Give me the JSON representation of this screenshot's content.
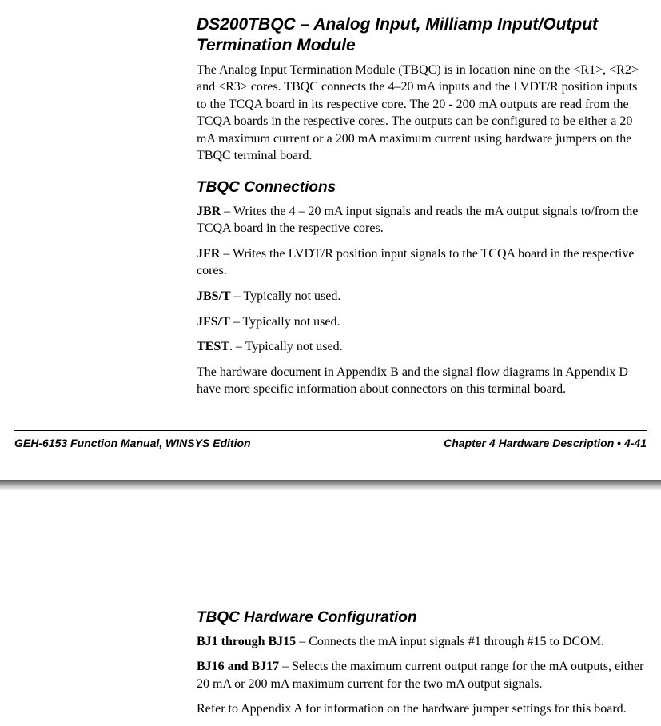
{
  "page1": {
    "title": "DS200TBQC – Analog Input, Milliamp Input/Output Termination Module",
    "intro": "The Analog Input Termination Module (TBQC) is in location nine on the <R1>, <R2> and <R3> cores. TBQC connects the 4–20 mA inputs and the LVDT/R position inputs to the TCQA board in its respective core. The 20 - 200 mA outputs are read from the TCQA boards in the respective cores. The outputs can be configured to be either a 20 mA maximum current or a 200 mA maximum current using hardware jumpers on the TBQC terminal board.",
    "sec1_title": "TBQC Connections",
    "entries": [
      {
        "label": "JBR",
        "sep": " – ",
        "text": "Writes the 4 – 20 mA input signals and reads the mA output signals to/from the TCQA board in the respective cores."
      },
      {
        "label": "JFR",
        "sep": " – ",
        "text": "Writes the LVDT/R position input signals to the TCQA board in the respective cores."
      },
      {
        "label": "JBS/T",
        "sep": " – ",
        "text": "Typically not used."
      },
      {
        "label": "JFS/T",
        "sep": " – ",
        "text": "Typically not used."
      },
      {
        "label": "TEST",
        "sep": ". – ",
        "text": "Typically not used."
      }
    ],
    "closing": "The hardware document in Appendix B and the signal flow diagrams in Appendix D have more specific information about connectors on this terminal board."
  },
  "footer": {
    "left": "GEH-6153   Function Manual, WINSYS Edition",
    "right_prefix": "Chapter 4   Hardware Description  ",
    "bullet": "•",
    "right_suffix": "  4-41"
  },
  "page2": {
    "sec_title": "TBQC Hardware Configuration",
    "entries": [
      {
        "label": "BJ1 through BJ15",
        "sep": " – ",
        "text": "Connects the mA input signals #1 through #15  to  DCOM."
      },
      {
        "label": "BJ16 and BJ17",
        "sep": " – ",
        "text": "Selects the maximum current output range for the mA outputs, either 20 mA or 200 mA maximum current for the two mA output signals."
      }
    ],
    "closing": "Refer to Appendix A for information on the hardware jumper settings for this board."
  }
}
